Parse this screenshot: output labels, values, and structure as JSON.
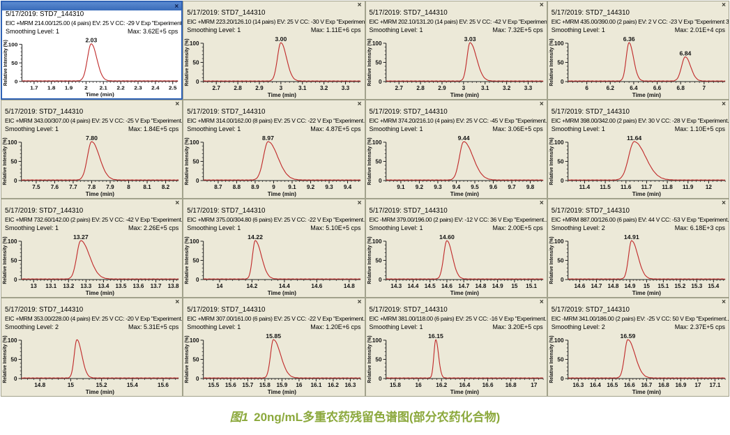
{
  "panel_common": {
    "title": "5/17/2019: STD7_144310",
    "ylabel": "Relative Intensity (%)",
    "xlabel": "Time (min)",
    "yticks": [
      0,
      50,
      100
    ],
    "close_label": "x"
  },
  "colors": {
    "curve": "#c02b2b",
    "panel_bg": "#ece9d8",
    "selected_bg": "#ffffff",
    "selected_titlebar": "#3f74c4",
    "axis": "#222222",
    "caption_green": "#8ca93d"
  },
  "caption": {
    "fig_label": "图1",
    "text": "20ng/mL多重农药残留色谱图(部分农药化合物)"
  },
  "chart_data": [
    {
      "type": "line",
      "selected": true,
      "title": "5/17/2019: STD7_144310",
      "info": "EIC +MRM 214.00/125.00 (4 pairs) EV: 25 V CC: -29 V Exp \"Experiment...",
      "smoothing": "Smoothing Level: 1",
      "max": "Max: 3.62E+5 cps",
      "xlim": [
        1.63,
        2.53
      ],
      "xticks": [
        1.7,
        1.8,
        1.9,
        2,
        2.1,
        2.2,
        2.3,
        2.4,
        2.5
      ],
      "peaks": [
        {
          "rt": 2.03,
          "label": "2.03",
          "height": 100,
          "wl": 0.022,
          "wr": 0.032
        }
      ]
    },
    {
      "type": "line",
      "selected": false,
      "title": "5/17/2019: STD7_144310",
      "info": "EIC +MRM 223.20/126.10 (14 pairs) EV: 25 V CC: -30 V Exp \"Experimen...",
      "smoothing": "Smoothing Level: 1",
      "max": "Max: 1.11E+6 cps",
      "xlim": [
        2.64,
        3.37
      ],
      "xticks": [
        2.7,
        2.8,
        2.9,
        3,
        3.1,
        3.2,
        3.3
      ],
      "peaks": [
        {
          "rt": 3.0,
          "label": "3.00",
          "height": 100,
          "wl": 0.016,
          "wr": 0.026
        }
      ]
    },
    {
      "type": "line",
      "selected": false,
      "title": "5/17/2019: STD7_144310",
      "info": "EIC +MRM 202.10/131.20 (14 pairs) EV: 25 V CC: -42 V Exp \"Experimen...",
      "smoothing": "Smoothing Level: 1",
      "max": "Max: 7.32E+5 cps",
      "xlim": [
        2.64,
        3.37
      ],
      "xticks": [
        2.7,
        2.8,
        2.9,
        3,
        3.1,
        3.2,
        3.3
      ],
      "peaks": [
        {
          "rt": 3.03,
          "label": "3.03",
          "height": 100,
          "wl": 0.014,
          "wr": 0.03
        }
      ]
    },
    {
      "type": "line",
      "selected": false,
      "title": "5/17/2019: STD7_144310",
      "info": "EIC +MRM 435.00/390.00 (2 pairs) EV: 2 V CC: -23 V Exp \"Experiment 3...",
      "smoothing": "Smoothing Level: 1",
      "max": "Max: 2.01E+4 cps",
      "xlim": [
        5.84,
        7.18
      ],
      "xticks": [
        6,
        6.2,
        6.4,
        6.6,
        6.8,
        7
      ],
      "peaks": [
        {
          "rt": 6.36,
          "label": "6.36",
          "height": 100,
          "wl": 0.024,
          "wr": 0.038
        },
        {
          "rt": 6.84,
          "label": "6.84",
          "height": 63,
          "wl": 0.032,
          "wr": 0.045
        }
      ]
    },
    {
      "type": "line",
      "selected": false,
      "title": "5/17/2019: STD7_144310",
      "info": "EIC +MRM 343.00/307.00 (4 pairs) EV: 25 V CC: -25 V Exp \"Experiment...",
      "smoothing": "Smoothing Level: 1",
      "max": "Max: 1.84E+5 cps",
      "xlim": [
        7.42,
        8.27
      ],
      "xticks": [
        7.5,
        7.6,
        7.7,
        7.8,
        7.9,
        8,
        8.1,
        8.2
      ],
      "peaks": [
        {
          "rt": 7.8,
          "label": "7.80",
          "height": 100,
          "wl": 0.023,
          "wr": 0.042
        }
      ]
    },
    {
      "type": "line",
      "selected": false,
      "title": "5/17/2019: STD7_144310",
      "info": "EIC +MRM 314.00/162.00 (8 pairs) EV: 25 V CC: -22 V Exp \"Experiment...",
      "smoothing": "Smoothing Level: 1",
      "max": "Max: 4.87E+5 cps",
      "xlim": [
        8.62,
        9.47
      ],
      "xticks": [
        8.7,
        8.8,
        8.9,
        9,
        9.1,
        9.2,
        9.3,
        9.4
      ],
      "peaks": [
        {
          "rt": 8.97,
          "label": "8.97",
          "height": 100,
          "wl": 0.025,
          "wr": 0.052
        }
      ]
    },
    {
      "type": "line",
      "selected": false,
      "title": "5/17/2019: STD7_144310",
      "info": "EIC +MRM 374.20/216.10 (4 pairs) EV: 25 V CC: -45 V Exp \"Experiment...",
      "smoothing": "Smoothing Level: 1",
      "max": "Max: 3.06E+5 cps",
      "xlim": [
        9.02,
        9.87
      ],
      "xticks": [
        9.1,
        9.2,
        9.3,
        9.4,
        9.5,
        9.6,
        9.7,
        9.8
      ],
      "peaks": [
        {
          "rt": 9.44,
          "label": "9.44",
          "height": 100,
          "wl": 0.023,
          "wr": 0.05
        }
      ]
    },
    {
      "type": "line",
      "selected": false,
      "title": "5/17/2019: STD7_144310",
      "info": "EIC +MRM 398.00/342.00 (2 pairs) EV: 30 V CC: -28 V Exp \"Experiment...",
      "smoothing": "Smoothing Level: 1",
      "max": "Max: 1.10E+5 cps",
      "xlim": [
        11.32,
        12.08
      ],
      "xticks": [
        11.4,
        11.5,
        11.6,
        11.7,
        11.8,
        11.9,
        12
      ],
      "peaks": [
        {
          "rt": 11.64,
          "label": "11.64",
          "height": 100,
          "wl": 0.027,
          "wr": 0.055
        }
      ]
    },
    {
      "type": "line",
      "selected": false,
      "title": "5/17/2019: STD7_144310",
      "info": "EIC +MRM 732.60/142.00 (2 pairs) EV: 25 V CC: -42 V Exp \"Experiment...",
      "smoothing": "Smoothing Level: 1",
      "max": "Max: 2.26E+5 cps",
      "xlim": [
        12.93,
        13.83
      ],
      "xticks": [
        13,
        13.1,
        13.2,
        13.3,
        13.4,
        13.5,
        13.6,
        13.7,
        13.8
      ],
      "peaks": [
        {
          "rt": 13.27,
          "label": "13.27",
          "height": 100,
          "wl": 0.023,
          "wr": 0.05
        }
      ]
    },
    {
      "type": "line",
      "selected": false,
      "title": "5/17/2019: STD7_144310",
      "info": "EIC +MRM 375.00/304.80 (6 pairs) EV: 25 V CC: -22 V Exp \"Experiment...",
      "smoothing": "Smoothing Level: 1",
      "max": "Max: 5.10E+5 cps",
      "xlim": [
        13.9,
        14.87
      ],
      "xticks": [
        14,
        14.2,
        14.4,
        14.6,
        14.8
      ],
      "peaks": [
        {
          "rt": 14.22,
          "label": "14.22",
          "height": 100,
          "wl": 0.017,
          "wr": 0.038
        }
      ]
    },
    {
      "type": "line",
      "selected": false,
      "title": "5/17/2019: STD7_144310",
      "info": "EIC -MRM 379.00/196.00 (2 pairs) EV: -12 V CC: 36 V Exp \"Experiment...",
      "smoothing": "Smoothing Level: 1",
      "max": "Max: 2.00E+5 cps",
      "xlim": [
        14.24,
        15.17
      ],
      "xticks": [
        14.3,
        14.4,
        14.5,
        14.6,
        14.7,
        14.8,
        14.9,
        15,
        15.1
      ],
      "peaks": [
        {
          "rt": 14.6,
          "label": "14.60",
          "height": 100,
          "wl": 0.019,
          "wr": 0.032
        }
      ]
    },
    {
      "type": "line",
      "selected": false,
      "title": "5/17/2019: STD7_144310",
      "info": "EIC +MRM 887.00/126.00 (6 pairs) EV: 44 V CC: -53 V Exp \"Experiment...",
      "smoothing": "Smoothing Level: 2",
      "max": "Max: 6.18E+3 cps",
      "xlim": [
        14.53,
        15.47
      ],
      "xticks": [
        14.6,
        14.7,
        14.8,
        14.9,
        15,
        15.1,
        15.2,
        15.3,
        15.4
      ],
      "peaks": [
        {
          "rt": 14.91,
          "label": "14.91",
          "height": 100,
          "wl": 0.018,
          "wr": 0.038
        }
      ]
    },
    {
      "type": "line",
      "selected": false,
      "title": "5/17/2019: STD7_144310",
      "info": "EIC +MRM 353.00/228.00 (4 pairs) EV: 25 V CC: -20 V Exp \"Experiment...",
      "smoothing": "Smoothing Level: 2",
      "max": "Max: 5.31E+5 cps",
      "xlim": [
        14.68,
        15.7
      ],
      "xticks": [
        14.8,
        15,
        15.2,
        15.4,
        15.6
      ],
      "peaks": [
        {
          "rt": 15.04,
          "label": "",
          "height": 100,
          "wl": 0.017,
          "wr": 0.032
        }
      ]
    },
    {
      "type": "line",
      "selected": false,
      "title": "5/17/2019: STD7_144310",
      "info": "EIC +MRM 307.00/161.00 (6 pairs) EV: 25 V CC: -22 V Exp \"Experiment...",
      "smoothing": "Smoothing Level: 1",
      "max": "Max: 1.20E+6 cps",
      "xlim": [
        15.44,
        16.36
      ],
      "xticks": [
        15.5,
        15.6,
        15.7,
        15.8,
        15.9,
        16,
        16.1,
        16.2,
        16.3
      ],
      "peaks": [
        {
          "rt": 15.85,
          "label": "15.85",
          "height": 100,
          "wl": 0.017,
          "wr": 0.042
        }
      ]
    },
    {
      "type": "line",
      "selected": false,
      "title": "5/17/2019: STD7_144310",
      "info": "EIC +MRM 381.00/118.00 (6 pairs) EV: 25 V CC: -16 V Exp \"Experiment...",
      "smoothing": "Smoothing Level: 1",
      "max": "Max: 3.20E+5 cps",
      "xlim": [
        15.72,
        17.08
      ],
      "xticks": [
        15.8,
        16,
        16.2,
        16.4,
        16.6,
        16.8,
        17
      ],
      "peaks": [
        {
          "rt": 16.15,
          "label": "16.15",
          "height": 100,
          "wl": 0.016,
          "wr": 0.024
        }
      ]
    },
    {
      "type": "line",
      "selected": false,
      "title": "5/17/2019: STD7_144310",
      "info": "EIC -MRM 341.00/186.00 (2 pairs) EV: -25 V CC: 50 V Exp \"Experiment...",
      "smoothing": "Smoothing Level: 2",
      "max": "Max: 2.37E+5 cps",
      "xlim": [
        16.24,
        17.16
      ],
      "xticks": [
        16.3,
        16.4,
        16.5,
        16.6,
        16.7,
        16.8,
        16.9,
        17,
        17.1
      ],
      "peaks": [
        {
          "rt": 16.59,
          "label": "16.59",
          "height": 100,
          "wl": 0.019,
          "wr": 0.042
        }
      ]
    }
  ]
}
